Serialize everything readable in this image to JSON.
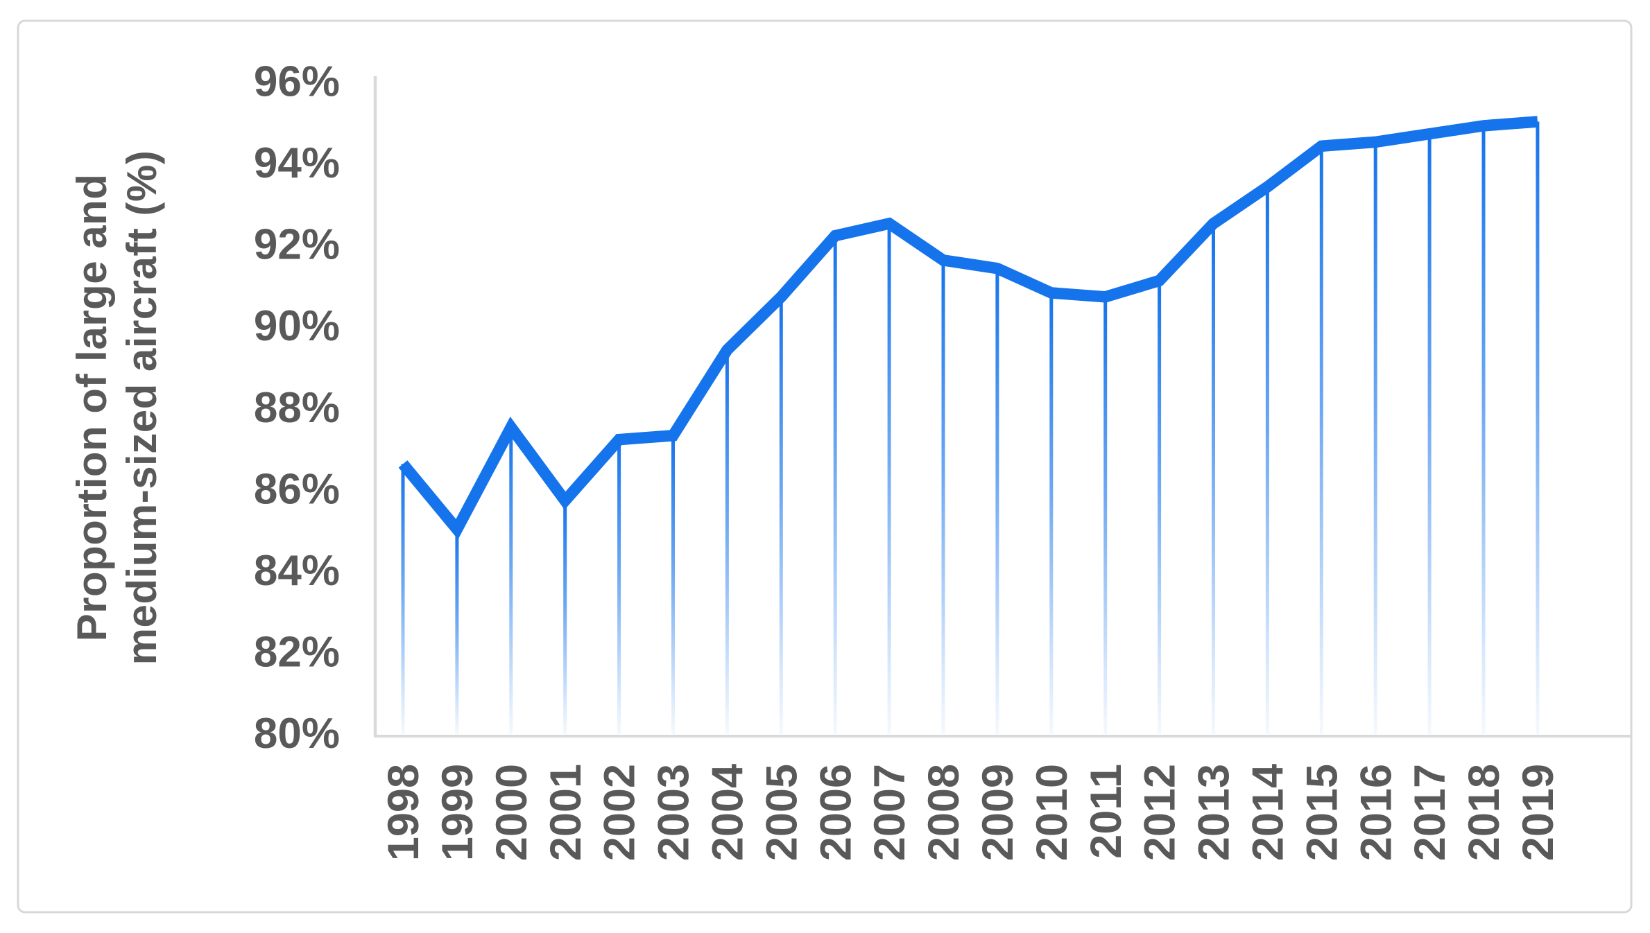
{
  "chart_data": {
    "type": "line",
    "title": "",
    "series_name": "Proportion of large and medium-sized aircraft (%)",
    "categories": [
      "1998",
      "1999",
      "2000",
      "2001",
      "2002",
      "2003",
      "2004",
      "2005",
      "2006",
      "2007",
      "2008",
      "2009",
      "2010",
      "2011",
      "2012",
      "2013",
      "2014",
      "2015",
      "2016",
      "2017",
      "2018",
      "2019"
    ],
    "values": [
      86.6,
      85.0,
      87.5,
      85.7,
      87.2,
      87.3,
      89.4,
      90.7,
      92.2,
      92.5,
      91.6,
      91.4,
      90.8,
      90.7,
      91.1,
      92.5,
      93.4,
      94.4,
      94.5,
      94.7,
      94.9,
      95.0
    ],
    "ylabel_lines": [
      "Proportion of large and",
      "medium-sized aircraft (%)"
    ],
    "xlabel": "",
    "yticks": [
      "96%",
      "94%",
      "92%",
      "90%",
      "88%",
      "86%",
      "84%",
      "82%",
      "80%"
    ],
    "ytick_values": [
      96,
      94,
      92,
      90,
      88,
      86,
      84,
      82,
      80
    ],
    "ylim": [
      80,
      96
    ],
    "grid": false,
    "legend_position": "none",
    "colors": {
      "line": "#1573EB",
      "dropline": "#1573EB",
      "axis": "#D9D9D9",
      "text": "#595959",
      "frame": "#D8D8D8",
      "background": "#FFFFFF"
    }
  }
}
